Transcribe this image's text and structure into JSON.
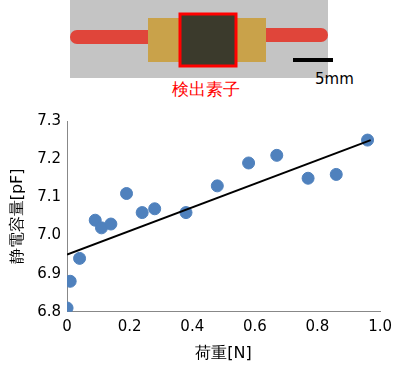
{
  "photo": {
    "label": "検出素子",
    "scale_bar": "5mm"
  },
  "chart_data": {
    "type": "scatter",
    "x_label": "荷重[N]",
    "y_label": "静電容量[pF]",
    "series": [
      {
        "type": "scatter",
        "color": "#4f81bd",
        "marker": "circle",
        "x": [
          0.0,
          0.01,
          0.04,
          0.09,
          0.11,
          0.14,
          0.19,
          0.24,
          0.28,
          0.38,
          0.48,
          0.58,
          0.67,
          0.77,
          0.86,
          0.96
        ],
        "values": [
          6.81,
          6.88,
          6.94,
          7.04,
          7.02,
          7.03,
          7.11,
          7.06,
          7.07,
          7.06,
          7.13,
          7.19,
          7.21,
          7.15,
          7.16,
          7.25
        ]
      },
      {
        "type": "line",
        "color": "#000000",
        "line_style": "solid",
        "x": [
          0.0,
          0.97
        ],
        "values": [
          6.95,
          7.25
        ]
      }
    ],
    "xlim": [
      0,
      1
    ],
    "xticks": [
      0,
      0.2,
      0.4,
      0.6,
      0.8,
      {
        "value": 1,
        "label": "1.0"
      }
    ],
    "ylim": [
      6.8,
      7.3
    ],
    "yticks": [
      6.8,
      6.9,
      {
        "value": 7,
        "label": "7.0"
      },
      7.1,
      7.2,
      7.3
    ],
    "grid": false
  }
}
